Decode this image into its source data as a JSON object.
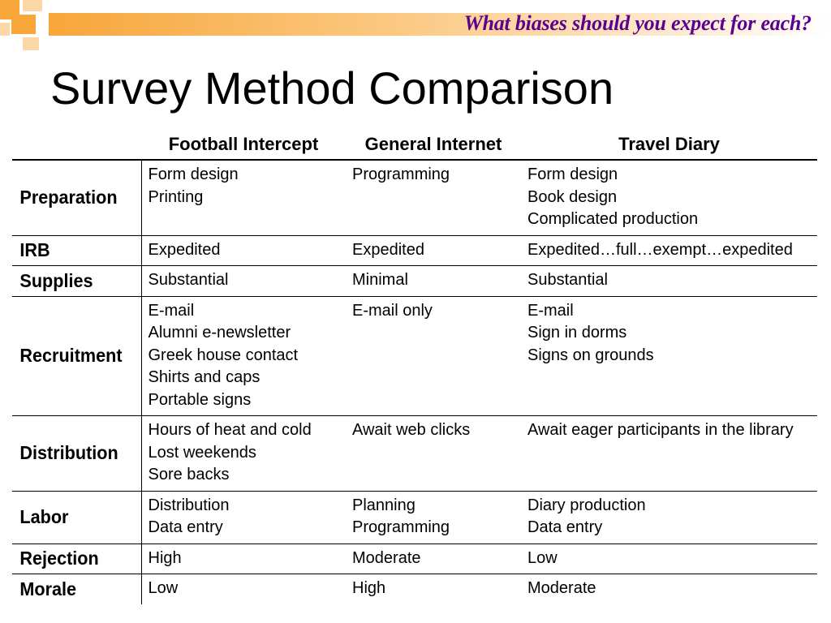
{
  "slide": {
    "subtitle": "What biases should you expect for each?",
    "title": "Survey Method Comparison",
    "accent_color": "#f7a63a",
    "subtitle_color": "#5b008f"
  },
  "table": {
    "columns": [
      "",
      "Football Intercept",
      "General Internet",
      "Travel Diary"
    ],
    "rows": [
      {
        "label": "Preparation",
        "cells": [
          [
            "Form design",
            "Printing"
          ],
          [
            "Programming"
          ],
          [
            "Form design",
            "Book design",
            "Complicated production"
          ]
        ]
      },
      {
        "label": "IRB",
        "cells": [
          [
            "Expedited"
          ],
          [
            "Expedited"
          ],
          [
            "Expedited…full…exempt…expedited"
          ]
        ]
      },
      {
        "label": "Supplies",
        "cells": [
          [
            "Substantial"
          ],
          [
            "Minimal"
          ],
          [
            "Substantial"
          ]
        ]
      },
      {
        "label": "Recruitment",
        "cells": [
          [
            "E-mail",
            "Alumni e-newsletter",
            "Greek house contact",
            "Shirts and caps",
            "Portable signs"
          ],
          [
            "E-mail only"
          ],
          [
            "E-mail",
            "Sign in dorms",
            "Signs on grounds"
          ]
        ]
      },
      {
        "label": "Distribution",
        "cells": [
          [
            "Hours of heat and cold",
            "Lost weekends",
            "Sore backs"
          ],
          [
            "Await web clicks"
          ],
          [
            "Await eager participants in the library"
          ]
        ]
      },
      {
        "label": "Labor",
        "cells": [
          [
            "Distribution",
            "Data entry"
          ],
          [
            "Planning",
            "Programming"
          ],
          [
            "Diary production",
            "Data entry"
          ]
        ]
      },
      {
        "label": "Rejection",
        "cells": [
          [
            "High"
          ],
          [
            "Moderate"
          ],
          [
            "Low"
          ]
        ]
      },
      {
        "label": "Morale",
        "cells": [
          [
            "Low"
          ],
          [
            "High"
          ],
          [
            "Moderate"
          ]
        ]
      }
    ]
  }
}
